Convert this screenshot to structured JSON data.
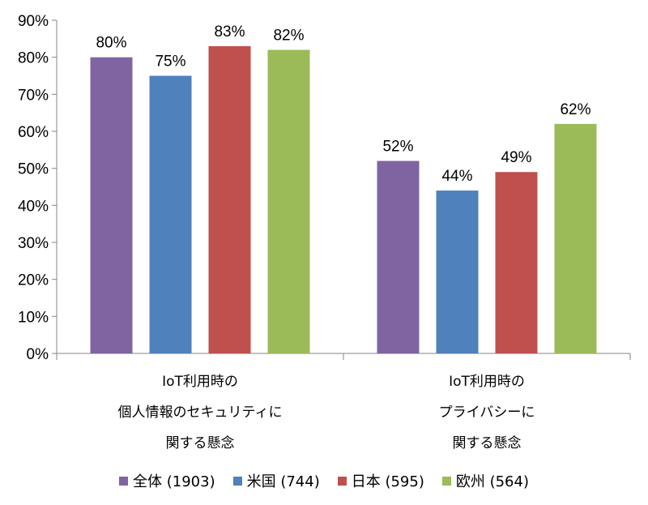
{
  "chart_data": {
    "type": "bar",
    "categories": [
      [
        "IoT利用時の",
        "個人情報のセキュリティに",
        "関する懸念"
      ],
      [
        "IoT利用時の",
        "プライバシーに",
        "関する懸念"
      ]
    ],
    "series": [
      {
        "name": "全体 (1903)",
        "values": [
          80,
          52
        ],
        "labels": [
          "80%",
          "52%"
        ],
        "color": "#8064A2"
      },
      {
        "name": "米国 (744)",
        "values": [
          75,
          44
        ],
        "labels": [
          "75%",
          "44%"
        ],
        "color": "#4F81BD"
      },
      {
        "name": "日本 (595)",
        "values": [
          83,
          49
        ],
        "labels": [
          "83%",
          "49%"
        ],
        "color": "#C0504D"
      },
      {
        "name": "欧州 (564)",
        "values": [
          82,
          62
        ],
        "labels": [
          "82%",
          "62%"
        ],
        "color": "#9BBB59"
      }
    ],
    "ylim": [
      0,
      90
    ],
    "y_ticks": [
      "0%",
      "10%",
      "20%",
      "30%",
      "40%",
      "50%",
      "60%",
      "70%",
      "80%",
      "90%"
    ],
    "grid": false,
    "legend_position": "bottom",
    "title": "",
    "xlabel": "",
    "ylabel": ""
  }
}
